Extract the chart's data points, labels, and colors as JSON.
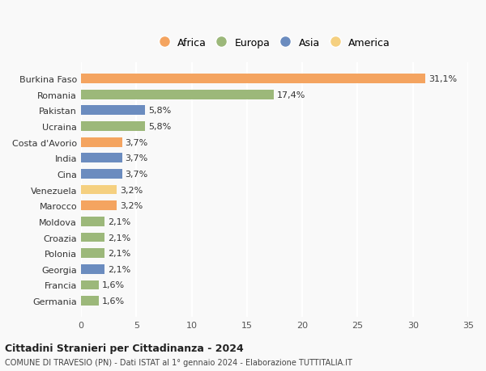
{
  "countries": [
    "Germania",
    "Francia",
    "Georgia",
    "Polonia",
    "Croazia",
    "Moldova",
    "Marocco",
    "Venezuela",
    "Cina",
    "India",
    "Costa d'Avorio",
    "Ucraina",
    "Pakistan",
    "Romania",
    "Burkina Faso"
  ],
  "values": [
    1.6,
    1.6,
    2.1,
    2.1,
    2.1,
    2.1,
    3.2,
    3.2,
    3.7,
    3.7,
    3.7,
    5.8,
    5.8,
    17.4,
    31.1
  ],
  "labels": [
    "1,6%",
    "1,6%",
    "2,1%",
    "2,1%",
    "2,1%",
    "2,1%",
    "3,2%",
    "3,2%",
    "3,7%",
    "3,7%",
    "3,7%",
    "5,8%",
    "5,8%",
    "17,4%",
    "31,1%"
  ],
  "continents": [
    "Europa",
    "Europa",
    "Asia",
    "Europa",
    "Europa",
    "Europa",
    "Africa",
    "America",
    "Asia",
    "Asia",
    "Africa",
    "Europa",
    "Asia",
    "Europa",
    "Africa"
  ],
  "colors": {
    "Africa": "#F4A460",
    "Europa": "#9CB87A",
    "Asia": "#6B8CBF",
    "America": "#F5D080"
  },
  "legend_order": [
    "Africa",
    "Europa",
    "Asia",
    "America"
  ],
  "legend_colors": {
    "Africa": "#F4A460",
    "Europa": "#9CB87A",
    "Asia": "#6B8CBF",
    "America": "#F5D080"
  },
  "xlim": [
    0,
    35
  ],
  "xticks": [
    0,
    5,
    10,
    15,
    20,
    25,
    30,
    35
  ],
  "title": "Cittadini Stranieri per Cittadinanza - 2024",
  "subtitle": "COMUNE DI TRAVESIO (PN) - Dati ISTAT al 1° gennaio 2024 - Elaborazione TUTTITALIA.IT",
  "background_color": "#f9f9f9",
  "grid_color": "#ffffff"
}
